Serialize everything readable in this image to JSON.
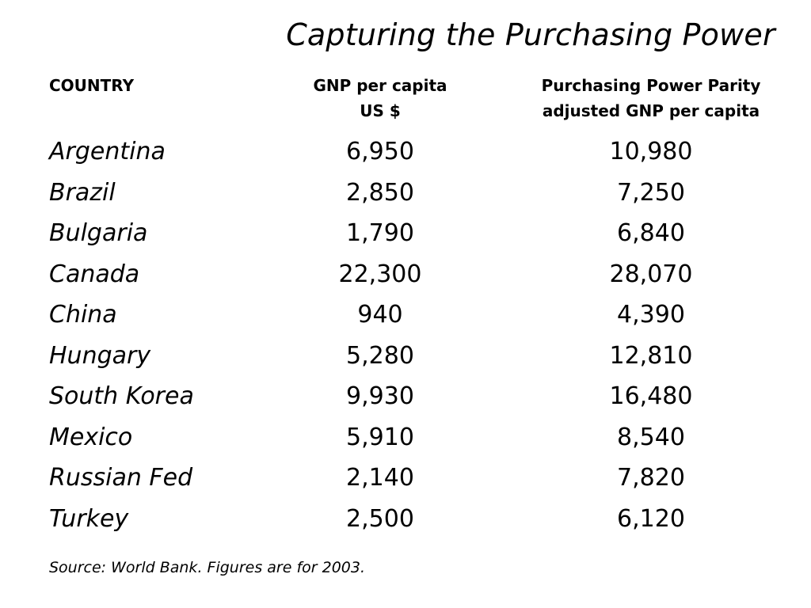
{
  "title": "Capturing the Purchasing Power",
  "headers": {
    "country": "COUNTRY",
    "gnp_line1": "GNP per capita",
    "gnp_line2": "US $",
    "ppp_line1": "Purchasing Power Parity",
    "ppp_line2": "adjusted GNP per capita"
  },
  "rows": [
    {
      "country": "Argentina",
      "gnp": "6,950",
      "ppp": "10,980"
    },
    {
      "country": "Brazil",
      "gnp": "2,850",
      "ppp": "7,250"
    },
    {
      "country": "Bulgaria",
      "gnp": "1,790",
      "ppp": "6,840"
    },
    {
      "country": "Canada",
      "gnp": "22,300",
      "ppp": "28,070"
    },
    {
      "country": "China",
      "gnp": "940",
      "ppp": "4,390"
    },
    {
      "country": "Hungary",
      "gnp": "5,280",
      "ppp": "12,810"
    },
    {
      "country": "South Korea",
      "gnp": "9,930",
      "ppp": "16,480"
    },
    {
      "country": "Mexico",
      "gnp": "5,910",
      "ppp": "8,540"
    },
    {
      "country": "Russian Fed",
      "gnp": "2,140",
      "ppp": "7,820"
    },
    {
      "country": "Turkey",
      "gnp": "2,500",
      "ppp": "6,120"
    }
  ],
  "source": "Source: World Bank. Figures are for 2003."
}
